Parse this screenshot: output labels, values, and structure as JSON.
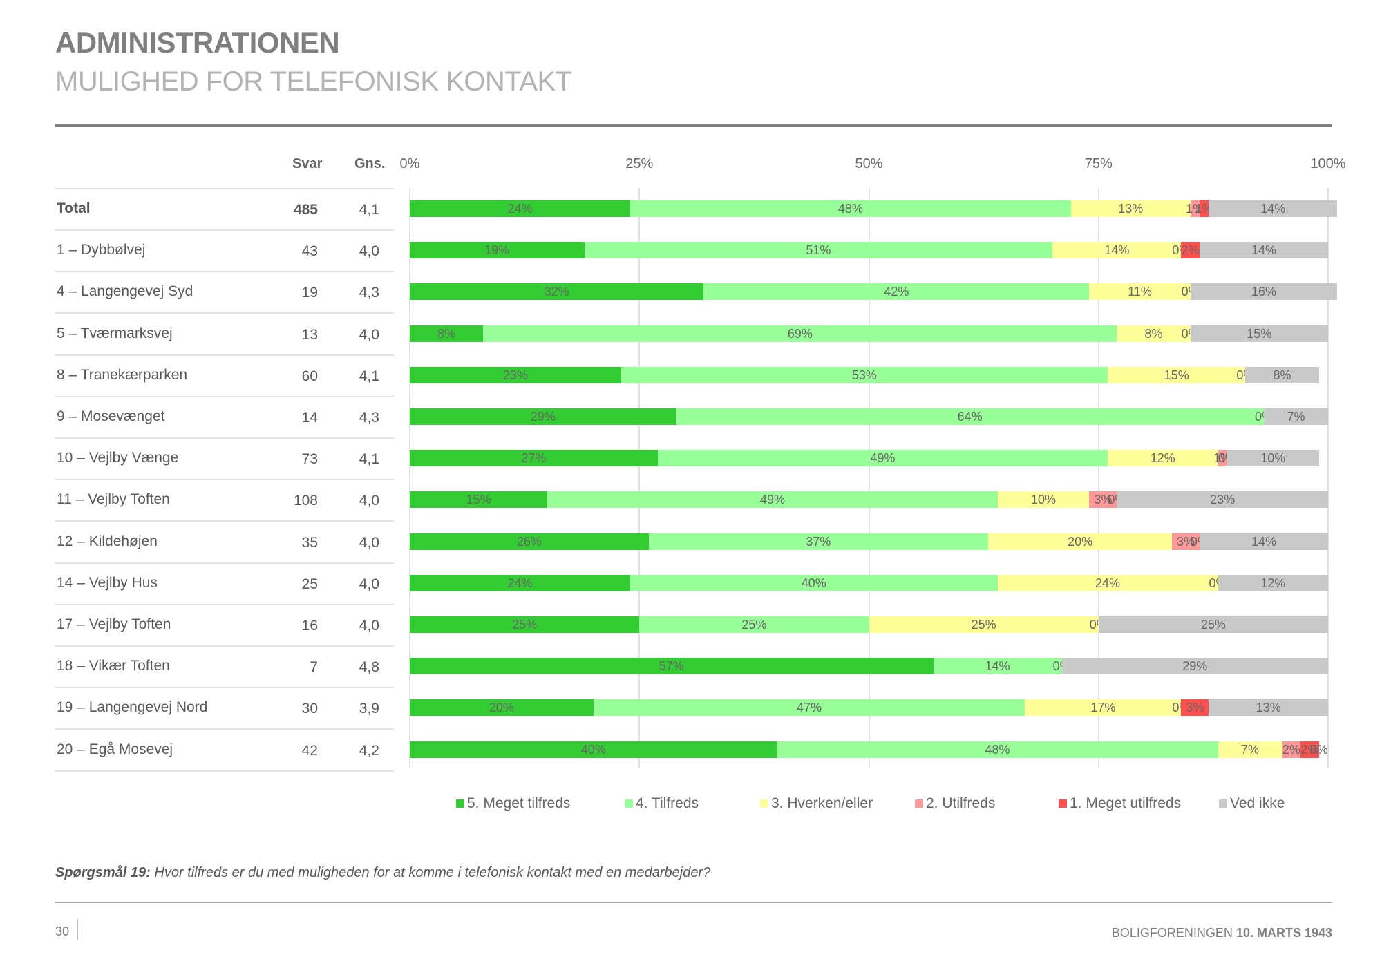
{
  "header": {
    "title": "ADMINISTRATIONEN",
    "subtitle": "MULIGHED FOR TELEFONISK KONTAKT"
  },
  "table": {
    "col_svar": "Svar",
    "col_gns": "Gns."
  },
  "chart_data": {
    "type": "bar",
    "orientation": "horizontal",
    "stacked": "percent",
    "title": "MULIGHED FOR TELEFONISK KONTAKT",
    "xlabel": "",
    "ylabel": "",
    "xlim": [
      0,
      100
    ],
    "x_ticks": [
      "0%",
      "25%",
      "50%",
      "75%",
      "100%"
    ],
    "grid": true,
    "legend_position": "bottom",
    "categories": [
      "Total",
      "1 – Dybbølvej",
      "4 – Langengevej Syd",
      "5 – Tværmarksvej",
      "8 – Tranekærparken",
      "9 – Mosevænget",
      "10 – Vejlby Vænge",
      "11 – Vejlby Toften",
      "12 – Kildehøjen",
      "14 – Vejlby Hus",
      "17 – Vejlby Toften",
      "18 – Vikær Toften",
      "19 – Langengevej Nord",
      "20 – Egå Mosevej"
    ],
    "svar": [
      "485",
      "43",
      "19",
      "13",
      "60",
      "14",
      "73",
      "108",
      "35",
      "25",
      "16",
      "7",
      "30",
      "42"
    ],
    "gns": [
      "4,1",
      "4,0",
      "4,3",
      "4,0",
      "4,1",
      "4,3",
      "4,1",
      "4,0",
      "4,0",
      "4,0",
      "4,0",
      "4,8",
      "3,9",
      "4,2"
    ],
    "series": [
      {
        "name": "5. Meget tilfreds",
        "color": "#33cc33",
        "values": [
          24,
          19,
          32,
          8,
          23,
          29,
          27,
          15,
          26,
          24,
          25,
          57,
          20,
          40
        ],
        "labels": [
          "24%",
          "19%",
          "32%",
          "8%",
          "23%",
          "29%",
          "27%",
          "15%",
          "26%",
          "24%",
          "25%",
          "57%",
          "20%",
          "40%"
        ]
      },
      {
        "name": "4. Tilfreds",
        "color": "#99ff99",
        "values": [
          48,
          51,
          42,
          69,
          53,
          64,
          49,
          49,
          37,
          40,
          25,
          14,
          47,
          48
        ],
        "labels": [
          "48%",
          "51%",
          "42%",
          "69%",
          "53%",
          "64%",
          "49%",
          "49%",
          "37%",
          "40%",
          "25%",
          "14%",
          "47%",
          "48%"
        ]
      },
      {
        "name": "3. Hverken/eller",
        "color": "#ffff99",
        "values": [
          13,
          14,
          11,
          8,
          15,
          0,
          12,
          10,
          20,
          24,
          25,
          0,
          17,
          7
        ],
        "labels": [
          "13%",
          "14%",
          "11%",
          "8%",
          "15%",
          "0%",
          "12%",
          "10%",
          "20%",
          "24%",
          "25%",
          "0%",
          "17%",
          "7%"
        ]
      },
      {
        "name": "2. Utilfreds",
        "color": "#ff9999",
        "values": [
          1,
          0,
          0,
          0,
          0,
          0,
          1,
          3,
          3,
          0,
          0,
          0,
          0,
          2
        ],
        "labels": [
          "1%",
          "0%",
          "0%",
          "0%",
          "0%",
          "",
          "1%",
          "3%",
          "3%",
          "0%",
          "0%",
          "",
          "0%",
          "2%"
        ]
      },
      {
        "name": "1. Meget utilfreds",
        "color": "#ff5050",
        "values": [
          1,
          2,
          0,
          0,
          0,
          0,
          0,
          0,
          0,
          0,
          0,
          0,
          3,
          2
        ],
        "labels": [
          "1%",
          "2%",
          "",
          "",
          "",
          "",
          "0%",
          "0%",
          "0%",
          "",
          "",
          "",
          "3%",
          "2%"
        ]
      },
      {
        "name": "Ved ikke",
        "color": "#c9c9c9",
        "values": [
          14,
          14,
          16,
          15,
          8,
          7,
          10,
          23,
          14,
          12,
          25,
          29,
          13,
          0
        ],
        "labels": [
          "14%",
          "14%",
          "16%",
          "15%",
          "8%",
          "7%",
          "10%",
          "23%",
          "14%",
          "12%",
          "25%",
          "29%",
          "13%",
          "0%"
        ]
      }
    ]
  },
  "footer": {
    "question_label": "Spørgsmål 19:",
    "question_text": " Hvor tilfreds er du med muligheden for at komme i telefonisk kontakt med en medarbejder?",
    "page_number": "30",
    "org_name": "BOLIGFORENINGEN ",
    "org_date": "10. MARTS 1943"
  }
}
